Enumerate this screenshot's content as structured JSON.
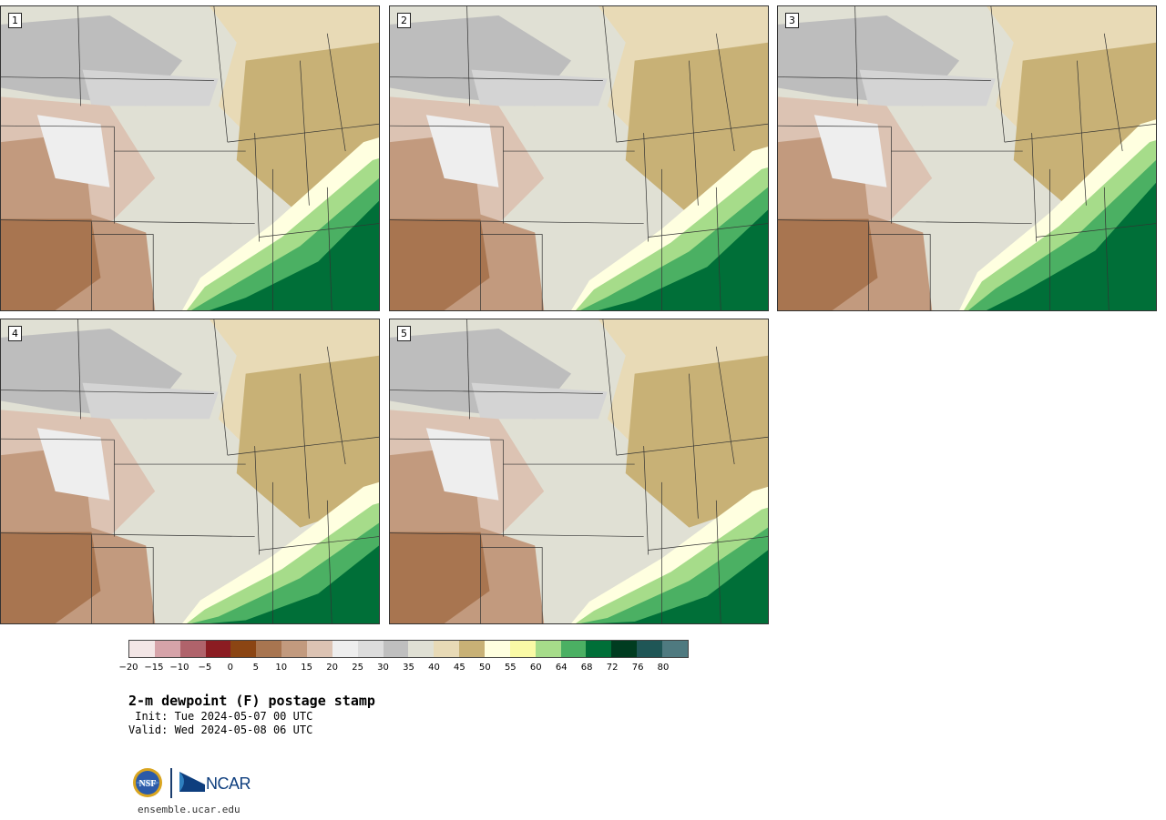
{
  "title": "2-m dewpoint (F) postage stamp",
  "init": " Init: Tue 2024-05-07 00 UTC",
  "valid": "Valid: Wed 2024-05-08 06 UTC",
  "panels": [
    {
      "label": "1"
    },
    {
      "label": "2"
    },
    {
      "label": "3"
    },
    {
      "label": "4"
    },
    {
      "label": "5"
    }
  ],
  "colorbar": {
    "tick_labels": [
      "−20",
      "−15",
      "−10",
      "−5",
      "0",
      "5",
      "10",
      "15",
      "20",
      "25",
      "30",
      "35",
      "40",
      "45",
      "50",
      "55",
      "60",
      "64",
      "68",
      "72",
      "76",
      "80"
    ],
    "colors": [
      "#f3e6e6",
      "#d6a3a9",
      "#b0636b",
      "#8b1c22",
      "#8b4513",
      "#a87550",
      "#c29a7e",
      "#dcc3b3",
      "#eeeeee",
      "#dcdcdc",
      "#bfbfbf",
      "#e0e0d4",
      "#e8dab6",
      "#c8b176",
      "#ffffe0",
      "#fafaa6",
      "#a6dc8a",
      "#4bb063",
      "#006f38",
      "#003c20",
      "#1f5656",
      "#4f7a80"
    ]
  },
  "logos": {
    "nsf": "NSF",
    "ncar": "NCAR"
  },
  "url": "ensemble.ucar.edu"
}
